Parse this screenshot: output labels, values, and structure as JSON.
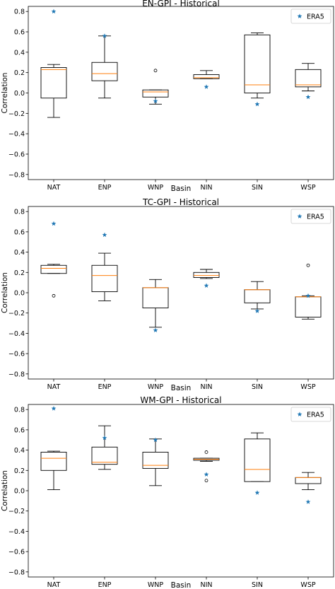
{
  "chart_data": [
    {
      "type": "box",
      "title": "EN-GPI - Historical",
      "xlabel": "Basin",
      "ylabel": "Correlation",
      "ylim": [
        -0.85,
        0.85
      ],
      "yticks": [
        "0.8",
        "0.6",
        "0.4",
        "0.2",
        "0.0",
        "−0.2",
        "−0.4",
        "−0.6",
        "−0.8"
      ],
      "ytick_values": [
        0.8,
        0.6,
        0.4,
        0.2,
        0.0,
        -0.2,
        -0.4,
        -0.6,
        -0.8
      ],
      "categories": [
        "NAT",
        "ENP",
        "WNP",
        "NIN",
        "SIN",
        "WSP"
      ],
      "legend": {
        "label": "ERA5",
        "position": "upper right"
      },
      "boxes": [
        {
          "whislo": -0.24,
          "q1": -0.05,
          "med": 0.23,
          "q3": 0.25,
          "whishi": 0.28,
          "fliers": []
        },
        {
          "whislo": -0.05,
          "q1": 0.12,
          "med": 0.19,
          "q3": 0.3,
          "whishi": 0.56,
          "fliers": []
        },
        {
          "whislo": -0.11,
          "q1": -0.04,
          "med": 0.01,
          "q3": 0.03,
          "whishi": 0.03,
          "fliers": [
            0.22
          ]
        },
        {
          "whislo": 0.14,
          "q1": 0.14,
          "med": 0.15,
          "q3": 0.18,
          "whishi": 0.22,
          "fliers": []
        },
        {
          "whislo": -0.05,
          "q1": 0.0,
          "med": 0.08,
          "q3": 0.57,
          "whishi": 0.59,
          "fliers": []
        },
        {
          "whislo": 0.02,
          "q1": 0.06,
          "med": 0.08,
          "q3": 0.23,
          "whishi": 0.29,
          "fliers": []
        }
      ],
      "era5": [
        0.8,
        0.56,
        -0.08,
        0.06,
        -0.11,
        -0.04
      ]
    },
    {
      "type": "box",
      "title": "TC-GPI - Historical",
      "xlabel": "Basin",
      "ylabel": "Correlation",
      "ylim": [
        -0.85,
        0.85
      ],
      "yticks": [
        "0.8",
        "0.6",
        "0.4",
        "0.2",
        "0.0",
        "−0.2",
        "−0.4",
        "−0.6",
        "−0.8"
      ],
      "ytick_values": [
        0.8,
        0.6,
        0.4,
        0.2,
        0.0,
        -0.2,
        -0.4,
        -0.6,
        -0.8
      ],
      "categories": [
        "NAT",
        "ENP",
        "WNP",
        "NIN",
        "SIN",
        "WSP"
      ],
      "legend": {
        "label": "ERA5",
        "position": "upper right"
      },
      "boxes": [
        {
          "whislo": 0.19,
          "q1": 0.19,
          "med": 0.24,
          "q3": 0.27,
          "whishi": 0.28,
          "fliers": [
            -0.03
          ]
        },
        {
          "whislo": -0.08,
          "q1": 0.01,
          "med": 0.17,
          "q3": 0.27,
          "whishi": 0.39,
          "fliers": []
        },
        {
          "whislo": -0.34,
          "q1": -0.15,
          "med": 0.05,
          "q3": 0.05,
          "whishi": 0.13,
          "fliers": []
        },
        {
          "whislo": 0.14,
          "q1": 0.15,
          "med": 0.17,
          "q3": 0.2,
          "whishi": 0.23,
          "fliers": []
        },
        {
          "whislo": -0.16,
          "q1": -0.1,
          "med": 0.03,
          "q3": 0.03,
          "whishi": 0.11,
          "fliers": []
        },
        {
          "whislo": -0.26,
          "q1": -0.24,
          "med": -0.04,
          "q3": -0.04,
          "whishi": -0.03,
          "fliers": [
            0.27
          ]
        }
      ],
      "era5": [
        0.68,
        0.57,
        -0.37,
        0.07,
        -0.18,
        -0.03
      ]
    },
    {
      "type": "box",
      "title": "WM-GPI - Historical",
      "xlabel": "Basin",
      "ylabel": "Correlation",
      "ylim": [
        -0.85,
        0.85
      ],
      "yticks": [
        "0.8",
        "0.6",
        "0.4",
        "0.2",
        "0.0",
        "−0.2",
        "−0.4",
        "−0.6",
        "−0.8"
      ],
      "ytick_values": [
        0.8,
        0.6,
        0.4,
        0.2,
        0.0,
        -0.2,
        -0.4,
        -0.6,
        -0.8
      ],
      "categories": [
        "NAT",
        "ENP",
        "WNP",
        "NIN",
        "SIN",
        "WSP"
      ],
      "legend": {
        "label": "ERA5",
        "position": "upper right"
      },
      "boxes": [
        {
          "whislo": 0.01,
          "q1": 0.2,
          "med": 0.32,
          "q3": 0.38,
          "whishi": 0.39,
          "fliers": []
        },
        {
          "whislo": 0.21,
          "q1": 0.26,
          "med": 0.28,
          "q3": 0.43,
          "whishi": 0.64,
          "fliers": []
        },
        {
          "whislo": 0.05,
          "q1": 0.22,
          "med": 0.25,
          "q3": 0.38,
          "whishi": 0.51,
          "fliers": []
        },
        {
          "whislo": 0.29,
          "q1": 0.3,
          "med": 0.31,
          "q3": 0.32,
          "whishi": 0.32,
          "fliers": [
            0.38,
            0.1
          ]
        },
        {
          "whislo": 0.09,
          "q1": 0.09,
          "med": 0.21,
          "q3": 0.51,
          "whishi": 0.57,
          "fliers": []
        },
        {
          "whislo": 0.01,
          "q1": 0.07,
          "med": 0.13,
          "q3": 0.13,
          "whishi": 0.18,
          "fliers": []
        }
      ],
      "era5": [
        0.81,
        0.52,
        0.5,
        0.16,
        -0.02,
        -0.11
      ]
    }
  ],
  "colors": {
    "median": "#ff7f0e",
    "era5": "#1f77b4",
    "box": "#000000",
    "legend_border": "#cccccc"
  }
}
